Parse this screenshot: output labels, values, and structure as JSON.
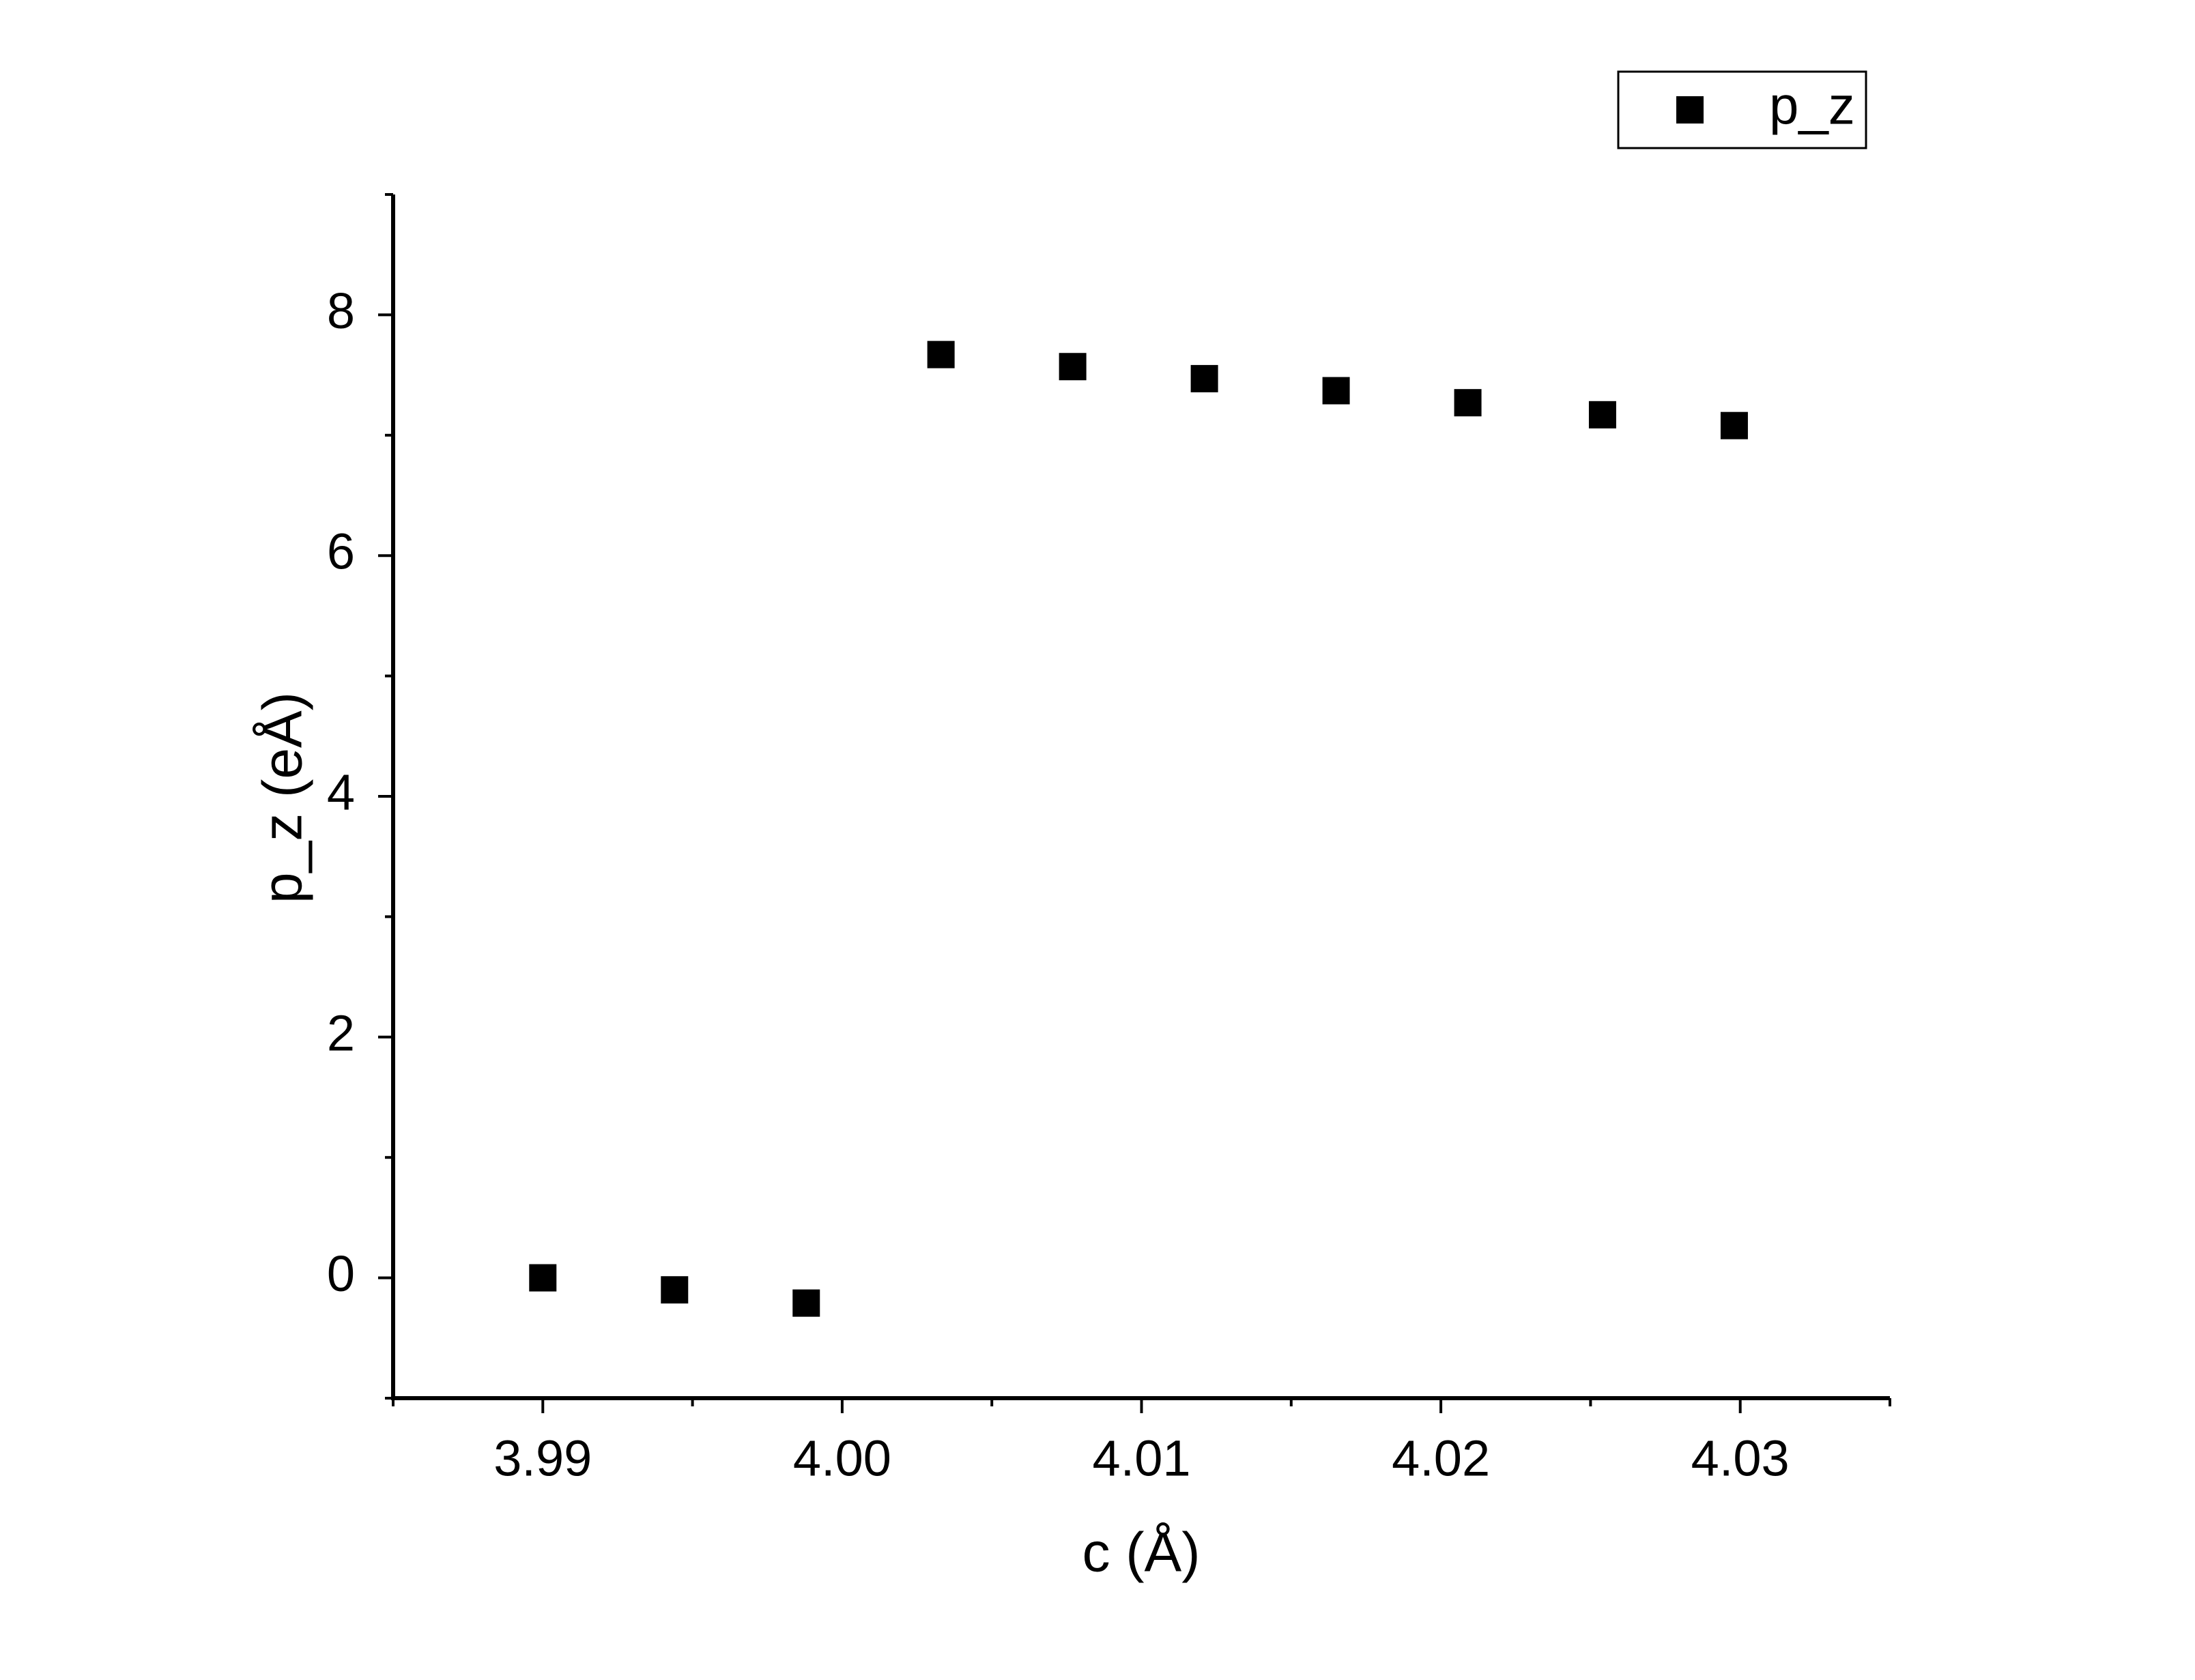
{
  "chart_data": {
    "type": "scatter",
    "x_label": "c (Å)",
    "y_label": "p_z (eÅ)",
    "xlim": [
      3.985,
      4.035
    ],
    "ylim": [
      -1,
      9
    ],
    "xticks": [
      {
        "value": 3.99,
        "label": "3.99"
      },
      {
        "value": 4.0,
        "label": "4.00"
      },
      {
        "value": 4.01,
        "label": "4.01"
      },
      {
        "value": 4.02,
        "label": "4.02"
      },
      {
        "value": 4.03,
        "label": "4.03"
      }
    ],
    "yticks": [
      0,
      2,
      4,
      6,
      8
    ],
    "legend": "top-right",
    "series": [
      {
        "name": "p_z",
        "color": "#000000",
        "x": [
          3.99,
          3.9944,
          3.9988,
          4.0033,
          4.0077,
          4.0121,
          4.0165,
          4.0209,
          4.0254,
          4.0298
        ],
        "values": [
          0,
          -0.1,
          -0.21,
          7.67,
          7.57,
          7.47,
          7.37,
          7.27,
          7.17,
          7.08
        ]
      }
    ]
  }
}
